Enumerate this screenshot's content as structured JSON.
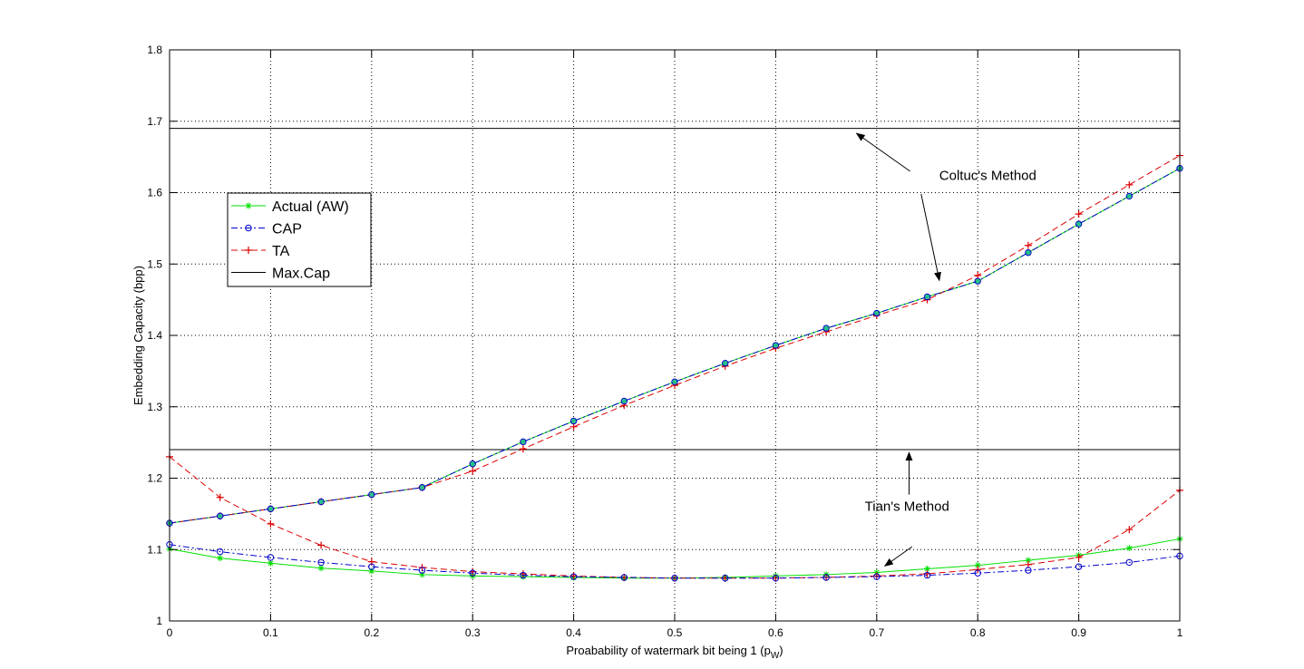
{
  "chart_data": {
    "type": "line",
    "title": "",
    "xlabel": "Proabability of watermark bit being 1 (p",
    "xlabel_sub": "W",
    "xlabel_end": ")",
    "ylabel": "Embedding Capacity (bpp)",
    "xlim": [
      0,
      1
    ],
    "ylim": [
      1,
      1.8
    ],
    "xticks": [
      0,
      0.1,
      0.2,
      0.3,
      0.4,
      0.5,
      0.6,
      0.7,
      0.8,
      0.9,
      1
    ],
    "xtick_labels": [
      "0",
      "0.1",
      "0.2",
      "0.3",
      "0.4",
      "0.5",
      "0.6",
      "0.7",
      "0.8",
      "0.9",
      "1"
    ],
    "yticks": [
      1,
      1.1,
      1.2,
      1.3,
      1.4,
      1.5,
      1.6,
      1.7,
      1.8
    ],
    "ytick_labels": [
      "1",
      "1.1",
      "1.2",
      "1.3",
      "1.4",
      "1.5",
      "1.6",
      "1.7",
      "1.8"
    ],
    "grid": true,
    "legend_position": "left",
    "x": [
      0,
      0.05,
      0.1,
      0.15,
      0.2,
      0.25,
      0.3,
      0.35,
      0.4,
      0.45,
      0.5,
      0.55,
      0.6,
      0.65,
      0.7,
      0.75,
      0.8,
      0.85,
      0.9,
      0.95,
      1
    ],
    "series": [
      {
        "name": "Actual (AW)",
        "group": "coltuc",
        "color": "#00e000",
        "dash": "solid",
        "marker": "star",
        "values": [
          1.137,
          1.147,
          1.157,
          1.167,
          1.177,
          1.187,
          1.22,
          1.251,
          1.28,
          1.308,
          1.335,
          1.361,
          1.386,
          1.41,
          1.431,
          1.454,
          1.476,
          1.516,
          1.556,
          1.595,
          1.634
        ]
      },
      {
        "name": "CAP",
        "group": "coltuc",
        "color": "#0000cc",
        "dash": "dashdot",
        "marker": "circle",
        "values": [
          1.137,
          1.147,
          1.157,
          1.167,
          1.177,
          1.187,
          1.22,
          1.251,
          1.28,
          1.308,
          1.335,
          1.361,
          1.386,
          1.41,
          1.431,
          1.454,
          1.476,
          1.516,
          1.556,
          1.595,
          1.634
        ]
      },
      {
        "name": "TA",
        "group": "coltuc",
        "color": "#dd0000",
        "dash": "dashed",
        "marker": "plus",
        "values": [
          1.137,
          1.147,
          1.157,
          1.167,
          1.177,
          1.187,
          1.21,
          1.241,
          1.272,
          1.302,
          1.33,
          1.357,
          1.382,
          1.405,
          1.428,
          1.45,
          1.484,
          1.526,
          1.57,
          1.611,
          1.652
        ]
      },
      {
        "name": "Actual (AW)",
        "group": "tian",
        "color": "#00e000",
        "dash": "solid",
        "marker": "star",
        "values": [
          1.101,
          1.088,
          1.081,
          1.074,
          1.07,
          1.065,
          1.063,
          1.062,
          1.061,
          1.06,
          1.06,
          1.061,
          1.063,
          1.065,
          1.068,
          1.073,
          1.078,
          1.085,
          1.092,
          1.102,
          1.115
        ]
      },
      {
        "name": "CAP",
        "group": "tian",
        "color": "#0000cc",
        "dash": "dashdot",
        "marker": "circle",
        "values": [
          1.107,
          1.097,
          1.089,
          1.082,
          1.076,
          1.071,
          1.067,
          1.064,
          1.062,
          1.061,
          1.06,
          1.06,
          1.06,
          1.061,
          1.062,
          1.064,
          1.067,
          1.071,
          1.076,
          1.082,
          1.091
        ]
      },
      {
        "name": "TA",
        "group": "tian",
        "color": "#dd0000",
        "dash": "dashed",
        "marker": "plus",
        "values": [
          1.23,
          1.173,
          1.136,
          1.106,
          1.083,
          1.075,
          1.069,
          1.066,
          1.063,
          1.061,
          1.06,
          1.06,
          1.06,
          1.061,
          1.063,
          1.066,
          1.072,
          1.079,
          1.089,
          1.128,
          1.183
        ]
      }
    ],
    "reference_lines": [
      {
        "name": "Max.Cap",
        "y": 1.69,
        "color": "#000000"
      },
      {
        "name": "Max.Cap",
        "y": 1.24,
        "color": "#000000"
      }
    ],
    "legend": [
      {
        "label": "Actual (AW)",
        "color": "#00e000",
        "dash": "solid",
        "marker": "star"
      },
      {
        "label": "CAP",
        "color": "#0000cc",
        "dash": "dashdot",
        "marker": "circle"
      },
      {
        "label": "TA",
        "color": "#dd0000",
        "dash": "dashed",
        "marker": "plus"
      },
      {
        "label": "Max.Cap",
        "color": "#000000",
        "dash": "solid",
        "marker": "none"
      }
    ],
    "annotations": [
      {
        "text": "Coltuc's Method",
        "text_x": 0.81,
        "text_y": 1.618,
        "arrows": [
          {
            "x": 0.68,
            "y": 1.683
          },
          {
            "x": 0.762,
            "y": 1.477
          }
        ],
        "arrow_starts": [
          {
            "x": 0.733,
            "y": 1.63
          },
          {
            "x": 0.744,
            "y": 1.598
          }
        ]
      },
      {
        "text": "Tian's Method",
        "text_x": 0.73,
        "text_y": 1.154,
        "arrows": [
          {
            "x": 0.732,
            "y": 1.236
          },
          {
            "x": 0.708,
            "y": 1.077
          }
        ],
        "arrow_starts": [
          {
            "x": 0.732,
            "y": 1.177
          },
          {
            "x": 0.735,
            "y": 1.104
          }
        ]
      }
    ]
  }
}
